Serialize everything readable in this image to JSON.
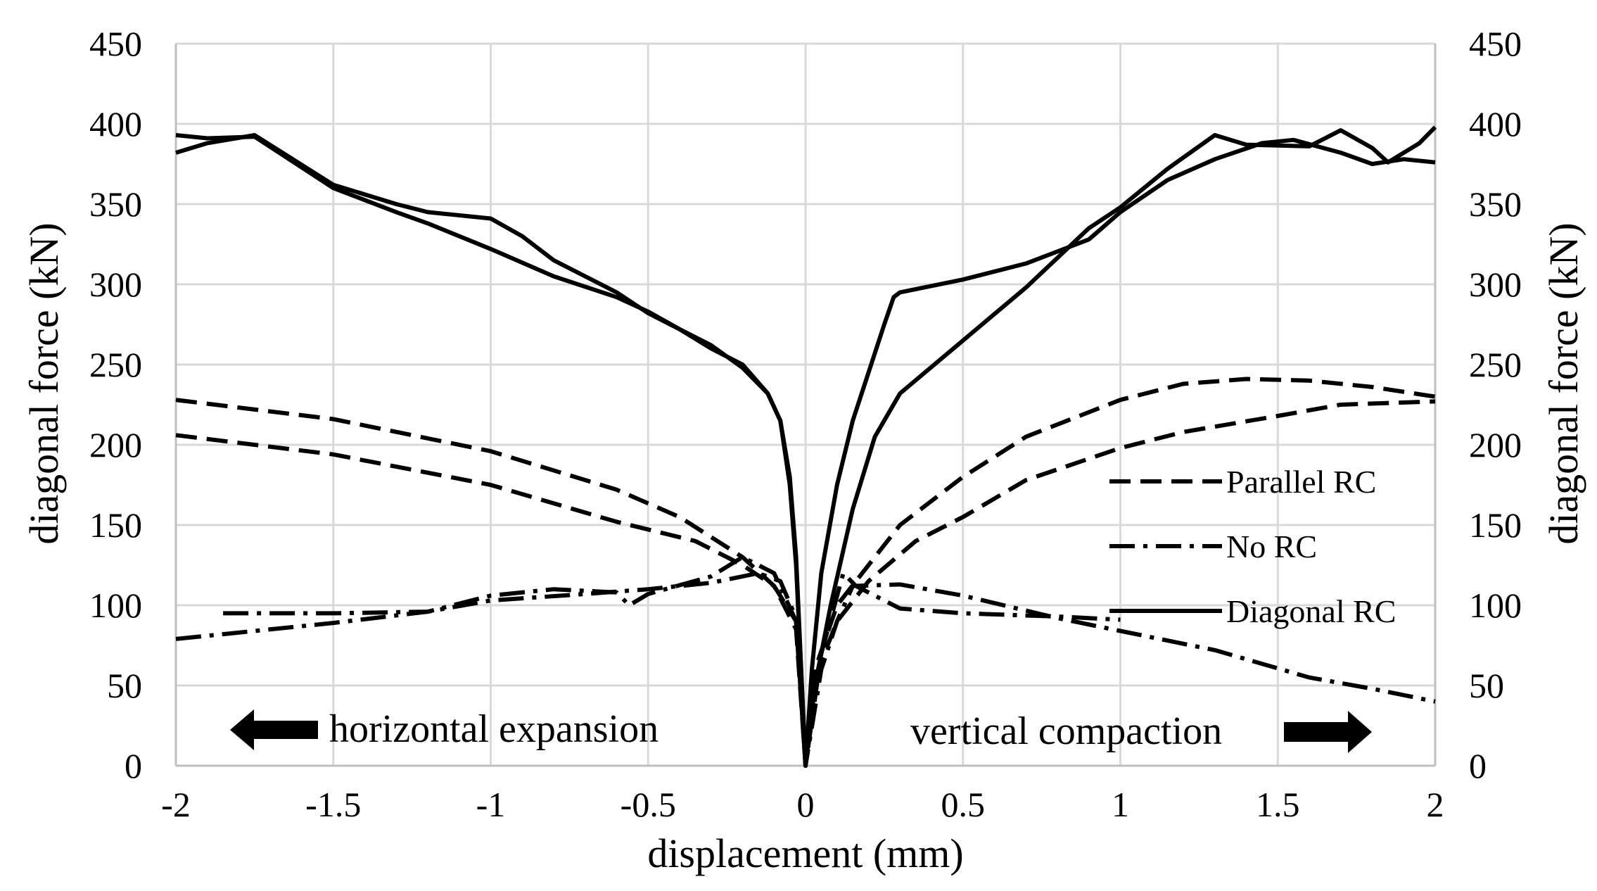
{
  "chart_data": {
    "type": "line",
    "xlabel": "displacement (mm)",
    "ylabel": "diagonal force (kN)",
    "ylabel_right": "diagonal force (kN)",
    "xlim": [
      -2,
      2
    ],
    "ylim": [
      0,
      450
    ],
    "x_ticks": [
      -2,
      -1.5,
      -1,
      -0.5,
      0,
      0.5,
      1,
      1.5,
      2
    ],
    "x_tick_labels": [
      "-2",
      "-1.5",
      "-1",
      "-0.5",
      "0",
      "0.5",
      "1",
      "1.5",
      "2"
    ],
    "y_ticks": [
      0,
      50,
      100,
      150,
      200,
      250,
      300,
      350,
      400,
      450
    ],
    "y_tick_labels": [
      "0",
      "50",
      "100",
      "150",
      "200",
      "250",
      "300",
      "350",
      "400",
      "450"
    ],
    "grid": true,
    "legend_position": "center-right",
    "legend": [
      {
        "label": "Parallel RC",
        "style": "dashed"
      },
      {
        "label": "No RC",
        "style": "dash-dot"
      },
      {
        "label": "Diagonal RC",
        "style": "solid"
      }
    ],
    "annotations": {
      "left": "horizontal expansion",
      "right": "vertical compaction"
    },
    "series": [
      {
        "name": "Parallel RC",
        "style": "dashed",
        "points": [
          [
            -2,
            228
          ],
          [
            -1.5,
            216
          ],
          [
            -1,
            196
          ],
          [
            -0.6,
            172
          ],
          [
            -0.4,
            155
          ],
          [
            -0.2,
            130
          ],
          [
            -0.1,
            112
          ],
          [
            -0.03,
            85
          ],
          [
            0,
            0
          ],
          [
            0.03,
            60
          ],
          [
            0.1,
            100
          ],
          [
            0.2,
            125
          ],
          [
            0.3,
            150
          ],
          [
            0.5,
            180
          ],
          [
            0.7,
            205
          ],
          [
            1,
            228
          ],
          [
            1.2,
            238
          ],
          [
            1.4,
            241
          ],
          [
            1.6,
            240
          ],
          [
            1.8,
            236
          ],
          [
            2,
            230
          ]
        ]
      },
      {
        "name": "Parallel RC",
        "style": "dashed",
        "points": [
          [
            -2,
            206
          ],
          [
            -1.5,
            194
          ],
          [
            -1,
            175
          ],
          [
            -0.6,
            152
          ],
          [
            -0.35,
            140
          ],
          [
            -0.2,
            125
          ],
          [
            -0.1,
            112
          ],
          [
            -0.03,
            90
          ],
          [
            0,
            0
          ],
          [
            0.03,
            55
          ],
          [
            0.1,
            90
          ],
          [
            0.2,
            115
          ],
          [
            0.35,
            140
          ],
          [
            0.5,
            155
          ],
          [
            0.7,
            178
          ],
          [
            1,
            198
          ],
          [
            1.2,
            208
          ],
          [
            1.5,
            218
          ],
          [
            1.7,
            225
          ],
          [
            2,
            227
          ]
        ]
      },
      {
        "name": "No RC",
        "style": "dash-dot",
        "points": [
          [
            -2,
            79
          ],
          [
            -1.5,
            89
          ],
          [
            -1.2,
            96
          ],
          [
            -1,
            103
          ],
          [
            -0.7,
            107
          ],
          [
            -0.5,
            110
          ],
          [
            -0.3,
            114
          ],
          [
            -0.15,
            120
          ],
          [
            -0.08,
            115
          ],
          [
            -0.03,
            92
          ],
          [
            0,
            0
          ],
          [
            0.05,
            60
          ],
          [
            0.1,
            90
          ],
          [
            0.15,
            112
          ],
          [
            0.3,
            113
          ],
          [
            0.5,
            106
          ],
          [
            0.8,
            92
          ],
          [
            1,
            84
          ],
          [
            1.3,
            72
          ],
          [
            1.6,
            55
          ],
          [
            1.8,
            48
          ],
          [
            2,
            40
          ]
        ]
      },
      {
        "name": "No RC",
        "style": "dash-dot",
        "points": [
          [
            -1.85,
            95
          ],
          [
            -1.5,
            95
          ],
          [
            -1.2,
            96
          ],
          [
            -1,
            106
          ],
          [
            -0.8,
            110
          ],
          [
            -0.6,
            108
          ],
          [
            -0.56,
            100
          ],
          [
            -0.5,
            107
          ],
          [
            -0.3,
            118
          ],
          [
            -0.2,
            130
          ],
          [
            -0.1,
            120
          ],
          [
            -0.03,
            90
          ],
          [
            0,
            0
          ],
          [
            0.05,
            70
          ],
          [
            0.12,
            120
          ],
          [
            0.16,
            112
          ],
          [
            0.2,
            108
          ],
          [
            0.3,
            98
          ],
          [
            0.5,
            95
          ],
          [
            0.8,
            93
          ],
          [
            1,
            91
          ]
        ]
      },
      {
        "name": "Diagonal RC",
        "style": "solid",
        "points": [
          [
            -2,
            382
          ],
          [
            -1.9,
            388
          ],
          [
            -1.75,
            393
          ],
          [
            -1.5,
            362
          ],
          [
            -1.3,
            350
          ],
          [
            -1.2,
            345
          ],
          [
            -1,
            341
          ],
          [
            -0.9,
            330
          ],
          [
            -0.8,
            315
          ],
          [
            -0.6,
            295
          ],
          [
            -0.5,
            282
          ],
          [
            -0.4,
            272
          ],
          [
            -0.3,
            260
          ],
          [
            -0.2,
            250
          ],
          [
            -0.12,
            232
          ],
          [
            -0.08,
            215
          ],
          [
            -0.05,
            175
          ],
          [
            -0.03,
            125
          ],
          [
            0,
            0
          ],
          [
            0.02,
            60
          ],
          [
            0.05,
            120
          ],
          [
            0.1,
            175
          ],
          [
            0.15,
            215
          ],
          [
            0.2,
            245
          ],
          [
            0.25,
            275
          ],
          [
            0.28,
            292
          ],
          [
            0.3,
            295
          ],
          [
            0.5,
            303
          ],
          [
            0.7,
            313
          ],
          [
            0.9,
            328
          ],
          [
            1,
            345
          ],
          [
            1.15,
            365
          ],
          [
            1.3,
            378
          ],
          [
            1.45,
            388
          ],
          [
            1.55,
            390
          ],
          [
            1.7,
            382
          ],
          [
            1.8,
            375
          ],
          [
            1.9,
            378
          ],
          [
            2,
            376
          ]
        ]
      },
      {
        "name": "Diagonal RC",
        "style": "solid",
        "points": [
          [
            -2,
            393
          ],
          [
            -1.9,
            391
          ],
          [
            -1.75,
            392
          ],
          [
            -1.5,
            360
          ],
          [
            -1.3,
            345
          ],
          [
            -1.2,
            338
          ],
          [
            -1,
            322
          ],
          [
            -0.8,
            305
          ],
          [
            -0.6,
            292
          ],
          [
            -0.5,
            283
          ],
          [
            -0.4,
            272
          ],
          [
            -0.3,
            262
          ],
          [
            -0.2,
            248
          ],
          [
            -0.12,
            232
          ],
          [
            -0.08,
            215
          ],
          [
            -0.05,
            180
          ],
          [
            -0.03,
            130
          ],
          [
            0,
            0
          ],
          [
            0.03,
            50
          ],
          [
            0.08,
            100
          ],
          [
            0.15,
            160
          ],
          [
            0.22,
            205
          ],
          [
            0.3,
            232
          ],
          [
            0.5,
            265
          ],
          [
            0.7,
            298
          ],
          [
            0.9,
            335
          ],
          [
            1,
            348
          ],
          [
            1.15,
            372
          ],
          [
            1.3,
            393
          ],
          [
            1.4,
            387
          ],
          [
            1.6,
            386
          ],
          [
            1.7,
            396
          ],
          [
            1.8,
            385
          ],
          [
            1.85,
            376
          ],
          [
            1.95,
            388
          ],
          [
            2,
            398
          ]
        ]
      }
    ]
  }
}
